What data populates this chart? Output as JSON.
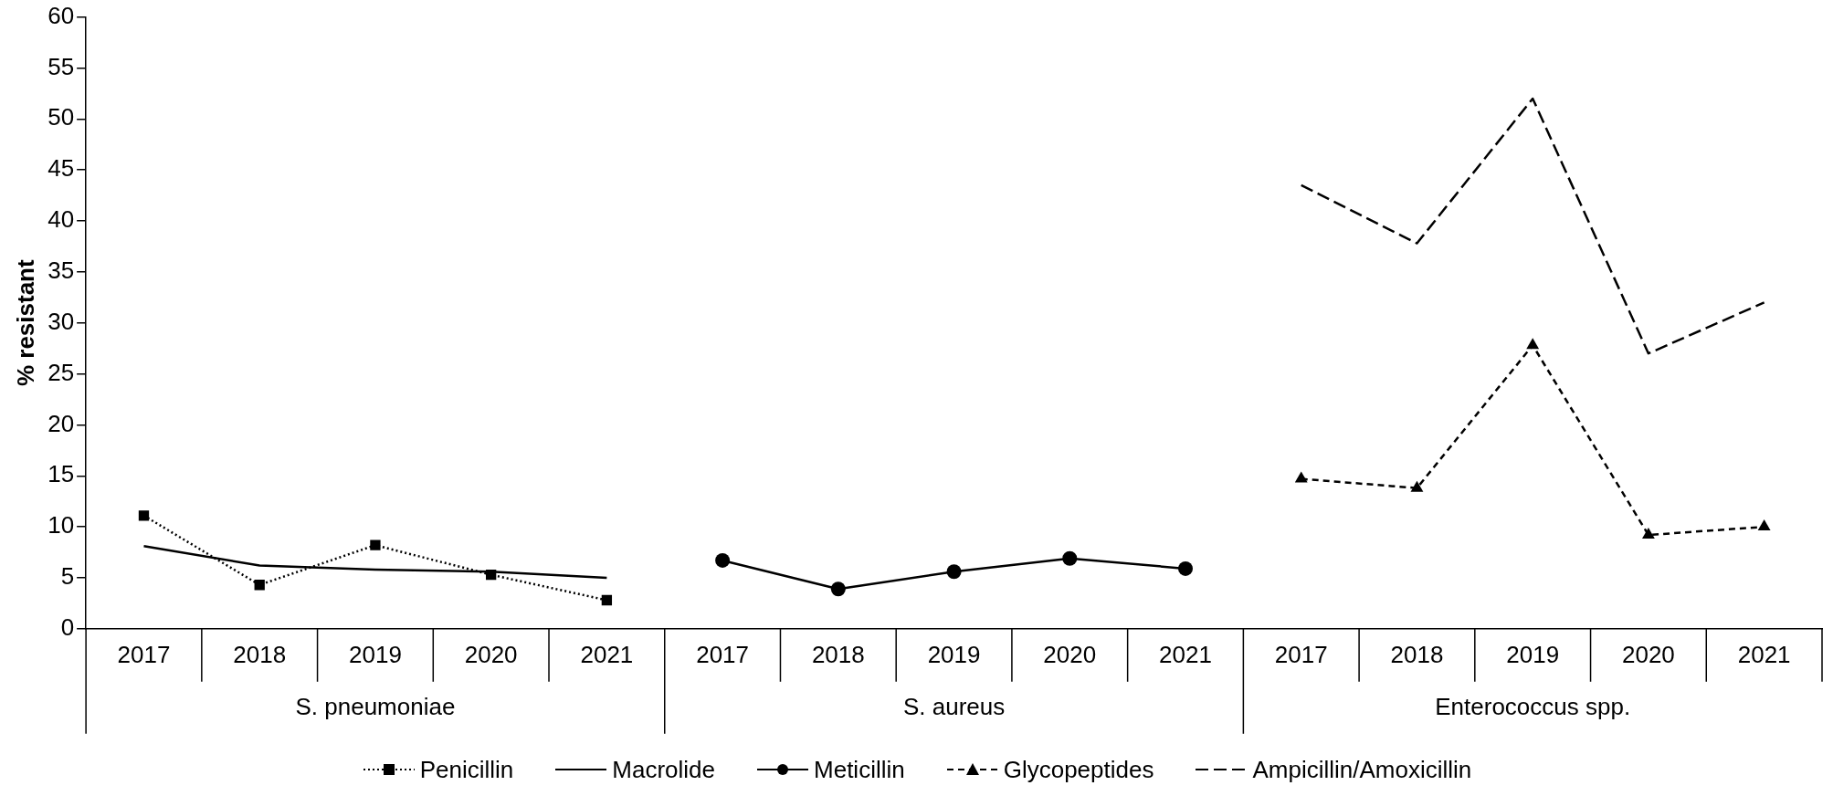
{
  "chart_data": {
    "type": "line",
    "ylabel": "% resistant",
    "categories": [
      "2017",
      "2018",
      "2019",
      "2020",
      "2021",
      "2017",
      "2018",
      "2019",
      "2020",
      "2021",
      "2017",
      "2018",
      "2019",
      "2020",
      "2021"
    ],
    "annotations": [
      "S. pneumoniae",
      "S. aureus",
      "Enterococcus spp."
    ],
    "ylim": [
      0,
      60
    ],
    "yticks": [
      0,
      5,
      10,
      15,
      20,
      25,
      30,
      35,
      40,
      45,
      50,
      55,
      60
    ],
    "grid": false,
    "legend": "bottom",
    "series": [
      {
        "name": "Penicillin",
        "color": "#000000",
        "marker": "square",
        "line_style": "dotted",
        "values": [
          11.1,
          4.3,
          8.2,
          5.3,
          2.8,
          null,
          null,
          null,
          null,
          null,
          null,
          null,
          null,
          null,
          null
        ]
      },
      {
        "name": "Macrolide",
        "color": "#000000",
        "marker": "none",
        "line_style": "solid",
        "values": [
          8.1,
          6.2,
          5.8,
          5.6,
          5.0,
          null,
          null,
          null,
          null,
          null,
          null,
          null,
          null,
          null,
          null
        ]
      },
      {
        "name": "Meticillin",
        "color": "#000000",
        "marker": "circle",
        "line_style": "solid",
        "values": [
          null,
          null,
          null,
          null,
          null,
          6.7,
          3.9,
          5.6,
          6.9,
          5.9,
          null,
          null,
          null,
          null,
          null
        ]
      },
      {
        "name": "Glycopeptides",
        "color": "#000000",
        "marker": "triangle",
        "line_style": "dashed",
        "values": [
          null,
          null,
          null,
          null,
          null,
          null,
          null,
          null,
          null,
          null,
          14.7,
          13.8,
          27.8,
          9.2,
          10.0
        ]
      },
      {
        "name": "Ampicillin/Amoxicillin",
        "color": "#000000",
        "marker": "none",
        "line_style": "longdash",
        "values": [
          null,
          null,
          null,
          null,
          null,
          null,
          null,
          null,
          null,
          null,
          43.5,
          37.8,
          52.0,
          27.0,
          32.0
        ]
      }
    ]
  }
}
